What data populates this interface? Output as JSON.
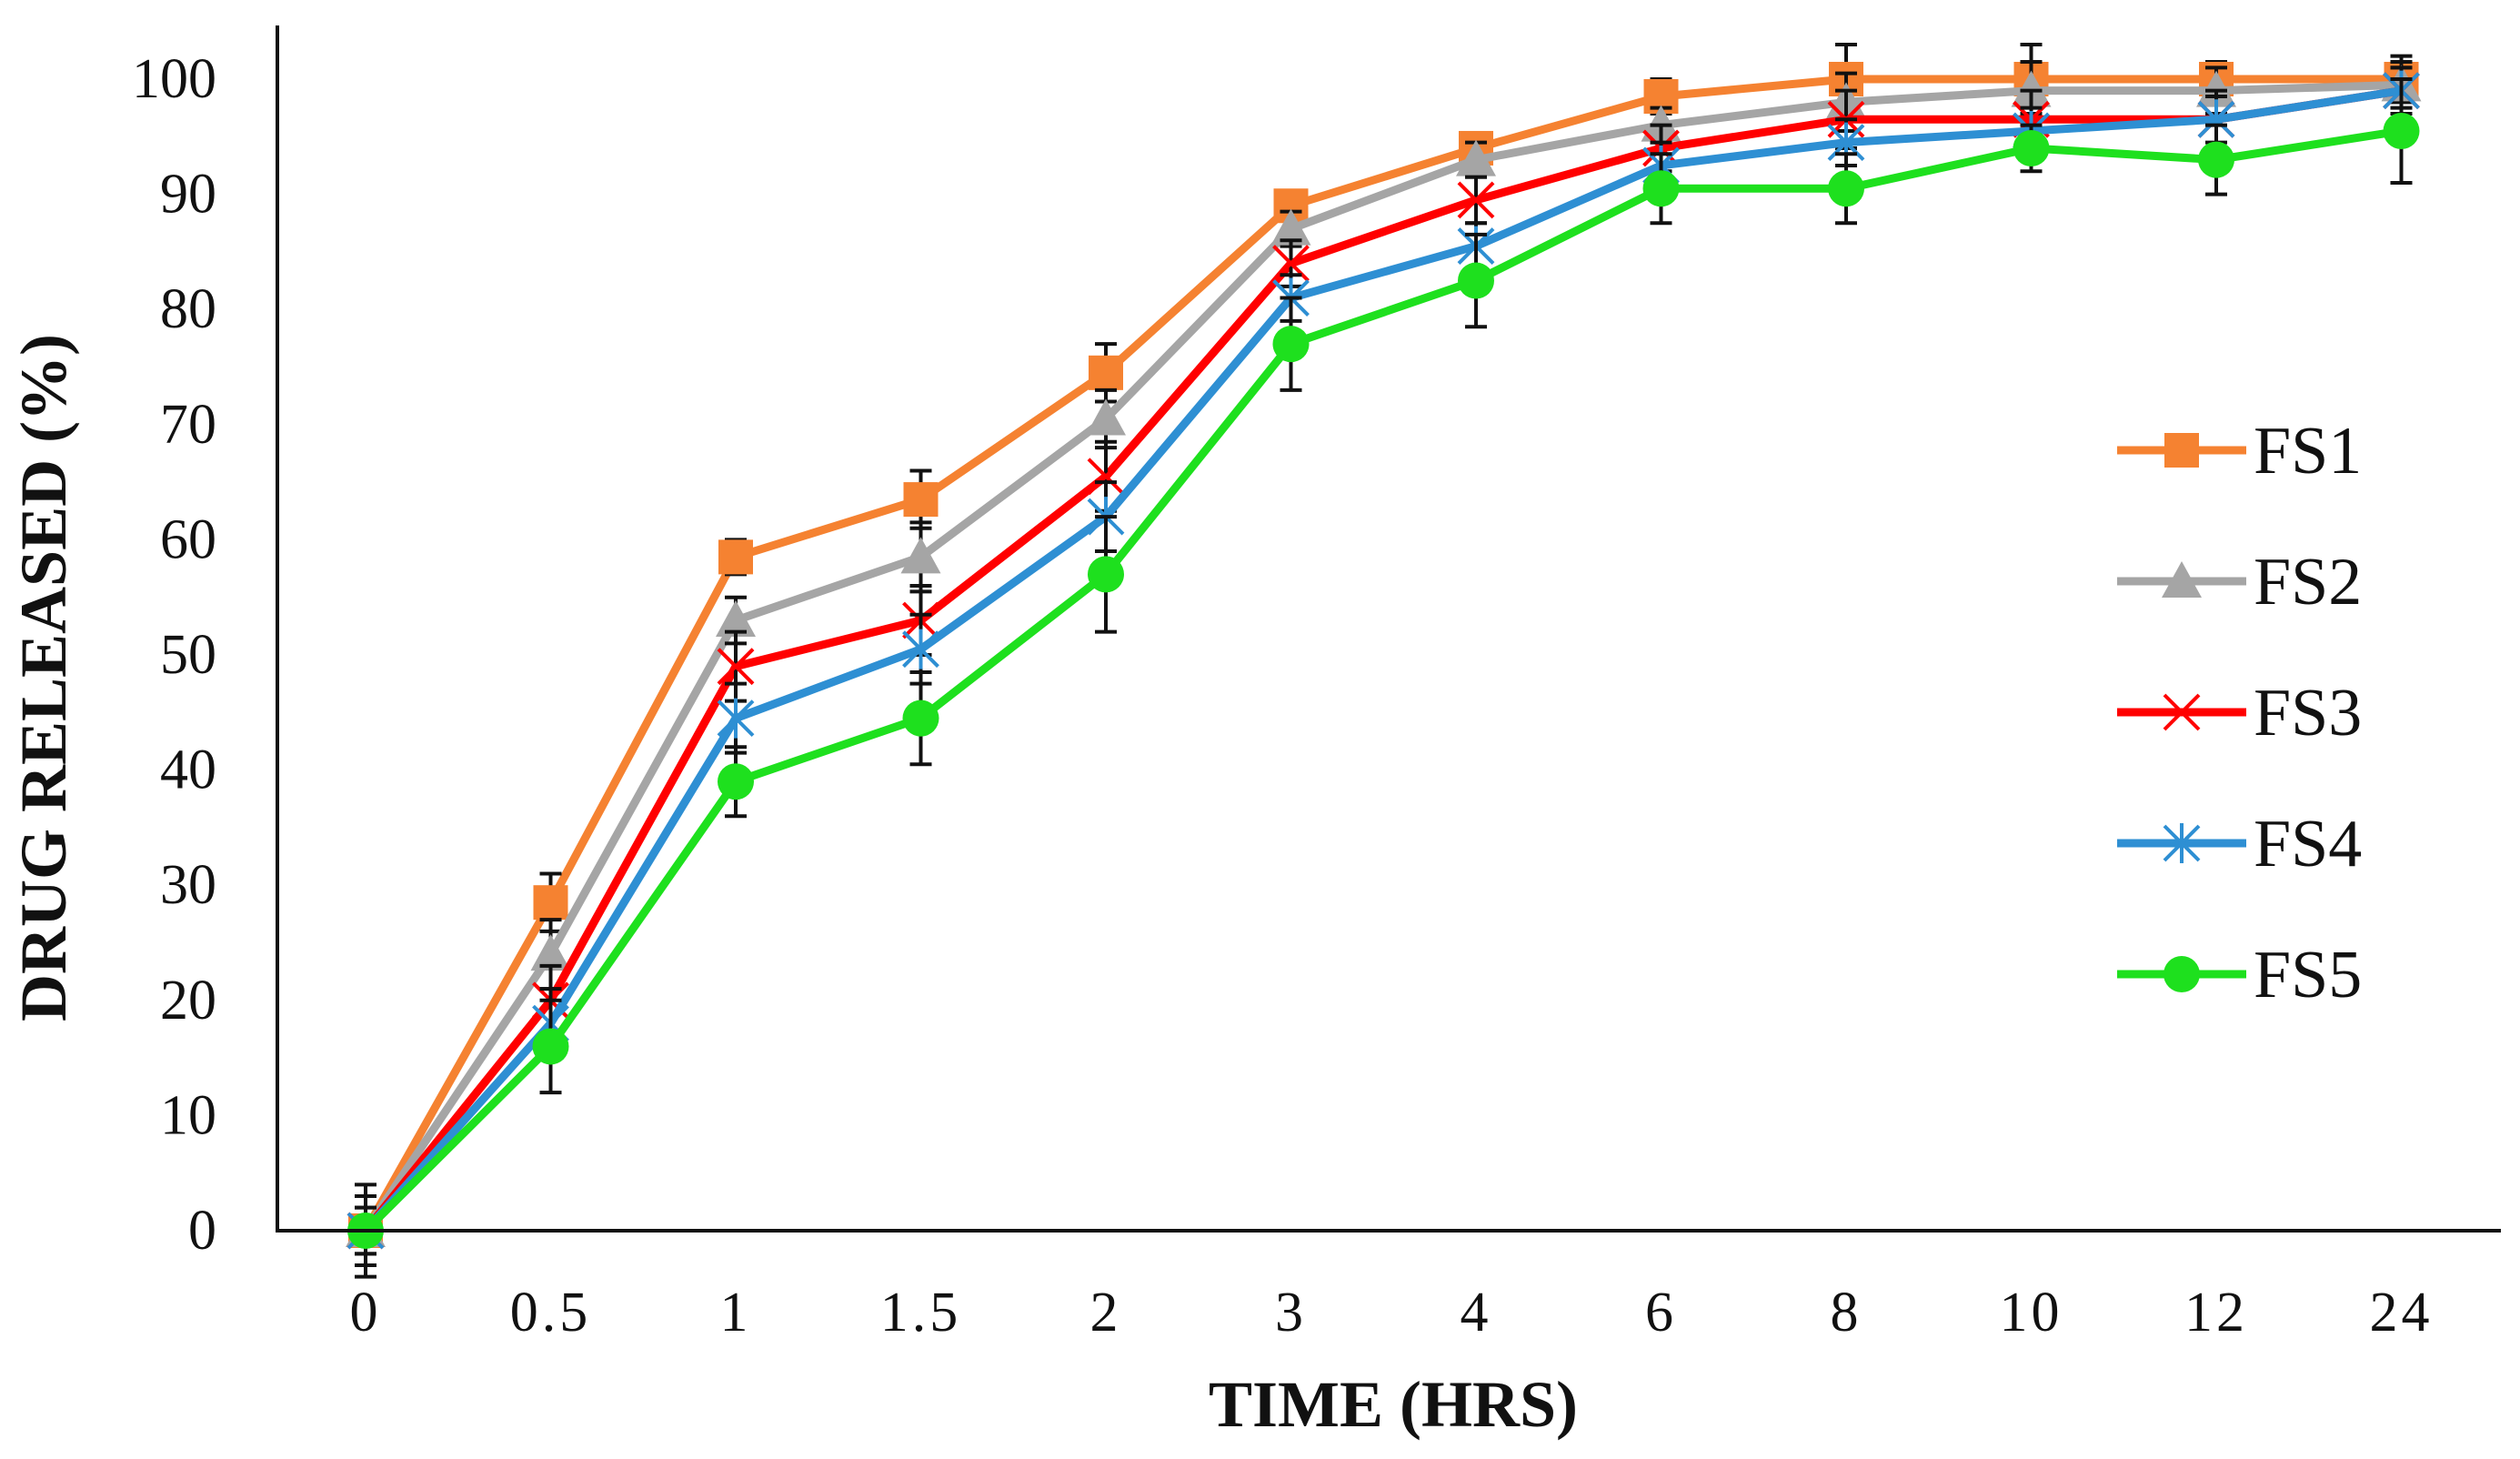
{
  "chart_data": {
    "type": "line",
    "title": "",
    "xlabel": "TIME (HRS)",
    "ylabel": "DRUG RELEASED (%)",
    "categories": [
      "0",
      "0.5",
      "1",
      "1.5",
      "2",
      "3",
      "4",
      "6",
      "8",
      "10",
      "12",
      "24"
    ],
    "yticks": [
      0,
      10,
      20,
      30,
      40,
      50,
      60,
      70,
      80,
      90,
      100
    ],
    "ylim": [
      0,
      100
    ],
    "legend_position": "right",
    "series": [
      {
        "name": "FS1",
        "color": "#F58231",
        "marker": "square",
        "values": [
          0,
          28.5,
          58.5,
          63.5,
          74.5,
          89,
          94,
          98.5,
          100,
          100,
          100,
          100
        ],
        "errors": [
          2,
          2.5,
          1.5,
          2.5,
          2.5,
          1,
          1,
          1.5,
          3,
          3,
          1.5,
          2
        ]
      },
      {
        "name": "FS2",
        "color": "#A5A5A5",
        "marker": "triangle",
        "values": [
          0,
          24,
          53,
          58.5,
          70.5,
          87,
          93,
          96,
          98,
          99,
          99,
          99.5
        ],
        "errors": [
          2,
          3,
          2,
          3,
          2.5,
          1.5,
          1.5,
          1.5,
          2.5,
          2.5,
          2,
          2
        ]
      },
      {
        "name": "FS3",
        "color": "#FF0000",
        "marker": "x",
        "values": [
          0,
          20,
          49,
          53,
          65.5,
          84,
          89.5,
          94,
          96.5,
          96.5,
          96.5,
          99
        ],
        "errors": [
          3,
          3,
          3,
          3,
          3,
          2,
          2,
          2,
          2.5,
          2.5,
          2.5,
          2
        ]
      },
      {
        "name": "FS4",
        "color": "#2E8FD3",
        "marker": "star",
        "values": [
          0,
          18,
          44.5,
          50.5,
          62,
          81,
          85.5,
          92.5,
          94.5,
          95.5,
          96.5,
          99
        ],
        "errors": [
          3,
          3,
          3,
          3,
          3,
          2,
          2,
          2,
          2,
          2,
          2,
          2
        ]
      },
      {
        "name": "FS5",
        "color": "#1EE01E",
        "marker": "circle",
        "values": [
          0,
          16,
          39,
          44.5,
          57,
          77,
          82.5,
          90.5,
          90.5,
          94,
          93,
          95.5
        ],
        "errors": [
          4,
          4,
          3,
          4,
          5,
          4,
          4,
          3,
          3,
          2,
          3,
          4.5
        ]
      }
    ]
  }
}
